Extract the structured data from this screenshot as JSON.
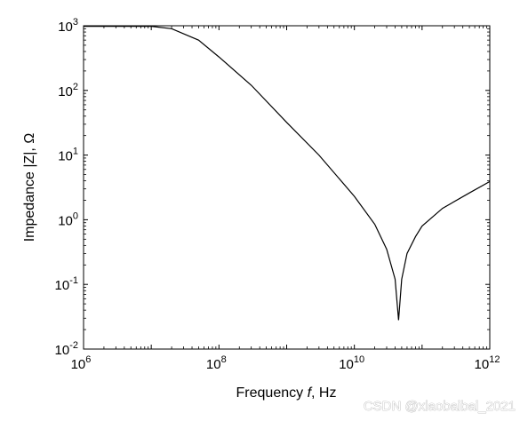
{
  "chart_data": {
    "type": "line",
    "xlabel_prefix": "Frequency ",
    "xlabel_var": "f",
    "xlabel_suffix": ", Hz",
    "ylabel": "Impedance |Z|, Ω",
    "xscale": "log",
    "yscale": "log",
    "xlim": [
      1000000,
      1000000000000
    ],
    "ylim": [
      0.01,
      1000
    ],
    "x_ticks": [
      {
        "base": "10",
        "exp": "6"
      },
      {
        "base": "10",
        "exp": "8"
      },
      {
        "base": "10",
        "exp": "10"
      },
      {
        "base": "10",
        "exp": "12"
      }
    ],
    "y_ticks": [
      {
        "base": "10",
        "exp": "3"
      },
      {
        "base": "10",
        "exp": "2"
      },
      {
        "base": "10",
        "exp": "1"
      },
      {
        "base": "10",
        "exp": "0"
      },
      {
        "base": "10",
        "exp": "-1"
      },
      {
        "base": "10",
        "exp": "-2"
      }
    ],
    "grid": false,
    "series": [
      {
        "color": "#000000",
        "x": [
          10000000,
          20000000,
          50000000,
          100000000,
          300000000,
          1000000000,
          3000000000,
          10000000000,
          20000000000,
          30000000000,
          40000000000,
          45000000000,
          50000000000,
          60000000000,
          80000000000,
          100000000000,
          200000000000,
          500000000000,
          1000000000000
        ],
        "y": [
          980,
          900,
          600,
          330,
          120,
          32,
          10,
          2.3,
          0.85,
          0.35,
          0.12,
          0.028,
          0.12,
          0.3,
          0.55,
          0.8,
          1.5,
          2.6,
          3.9
        ]
      }
    ]
  },
  "watermark": "CSDN @xiaobaibai_2021"
}
